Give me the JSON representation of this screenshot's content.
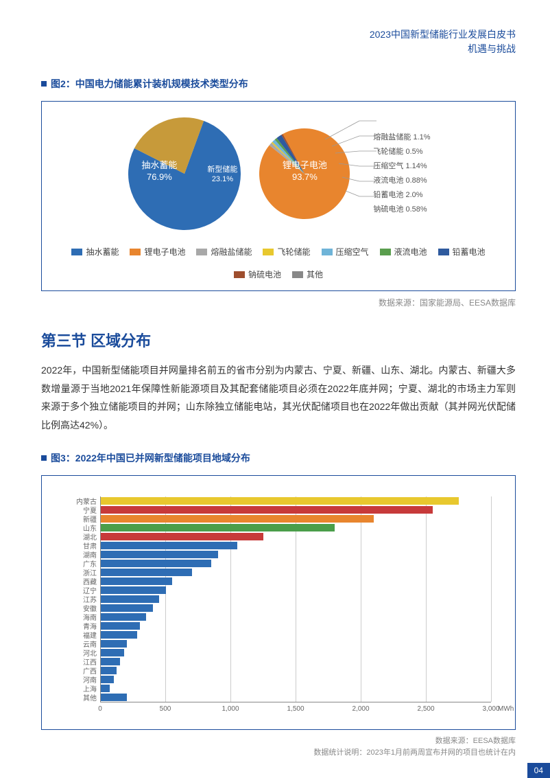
{
  "header": {
    "line1": "2023中国新型储能行业发展白皮书",
    "line2": "机遇与挑战"
  },
  "fig2": {
    "title": "图2：中国电力储能累计装机规模技术类型分布",
    "pie1": {
      "slices": [
        {
          "label": "抽水蓄能",
          "value": 76.9,
          "color": "#2e6db4",
          "text": "抽水蓄能\n76.9%"
        },
        {
          "label": "新型储能",
          "value": 23.1,
          "color": "#c79a3a",
          "text": "新型储能\n23.1%"
        }
      ]
    },
    "pie2": {
      "center_label": "锂电子电池",
      "center_value": "93.7%",
      "main_color": "#e8852e",
      "slices": [
        {
          "label": "锂电子电池",
          "value": 93.7,
          "color": "#e8852e"
        },
        {
          "label": "熔融盐储能",
          "value": 1.1,
          "color": "#a8a8a8"
        },
        {
          "label": "飞轮储能",
          "value": 0.5,
          "color": "#e8c82e"
        },
        {
          "label": "压缩空气",
          "value": 1.14,
          "color": "#6fb4d8"
        },
        {
          "label": "液流电池",
          "value": 0.88,
          "color": "#5a9e4e"
        },
        {
          "label": "铅蓄电池",
          "value": 2.0,
          "color": "#2e5a9e"
        },
        {
          "label": "钠硫电池",
          "value": 0.58,
          "color": "#9e4e2e"
        }
      ],
      "callouts": [
        "熔融盐储能 1.1%",
        "飞轮储能 0.5%",
        "压缩空气 1.14%",
        "液流电池 0.88%",
        "铅蓄电池 2.0%",
        "钠硫电池 0.58%"
      ]
    },
    "legend": [
      {
        "label": "抽水蓄能",
        "color": "#2e6db4"
      },
      {
        "label": "锂电子电池",
        "color": "#e8852e"
      },
      {
        "label": "熔融盐储能",
        "color": "#a8a8a8"
      },
      {
        "label": "飞轮储能",
        "color": "#e8c82e"
      },
      {
        "label": "压缩空气",
        "color": "#6fb4d8"
      },
      {
        "label": "液流电池",
        "color": "#5a9e4e"
      },
      {
        "label": "铅蓄电池",
        "color": "#2e5a9e"
      },
      {
        "label": "钠硫电池",
        "color": "#9e4e2e"
      },
      {
        "label": "其他",
        "color": "#888888"
      }
    ],
    "source": "数据来源：国家能源局、EESA数据库"
  },
  "section3": {
    "title": "第三节  区域分布",
    "body": "2022年，中国新型储能项目并网量排名前五的省市分别为内蒙古、宁夏、新疆、山东、湖北。内蒙古、新疆大多数增量源于当地2021年保障性新能源项目及其配套储能项目必须在2022年底并网；宁夏、湖北的市场主力军则来源于多个独立储能项目的并网；山东除独立储能电站，其光伏配储项目也在2022年做出贡献（其并网光伏配储比例高达42%）。"
  },
  "fig3": {
    "title": "图3：2022年中国已并网新型储能项目地域分布",
    "max": 3000,
    "unit": "MWh",
    "xticks": [
      0,
      500,
      1000,
      1500,
      2000,
      2500,
      3000
    ],
    "xtick_labels": [
      "0",
      "500",
      "1,000",
      "1,500",
      "2,000",
      "2,500",
      "3,000"
    ],
    "bars": [
      {
        "label": "内蒙古",
        "value": 2750,
        "color": "#e8c82e"
      },
      {
        "label": "宁夏",
        "value": 2550,
        "color": "#c73a3a"
      },
      {
        "label": "新疆",
        "value": 2100,
        "color": "#e8852e"
      },
      {
        "label": "山东",
        "value": 1800,
        "color": "#4a9e4a"
      },
      {
        "label": "湖北",
        "value": 1250,
        "color": "#c73a3a"
      },
      {
        "label": "甘肃",
        "value": 1050,
        "color": "#2e6db4"
      },
      {
        "label": "湖南",
        "value": 900,
        "color": "#2e6db4"
      },
      {
        "label": "广东",
        "value": 850,
        "color": "#2e6db4"
      },
      {
        "label": "浙江",
        "value": 700,
        "color": "#2e6db4"
      },
      {
        "label": "西藏",
        "value": 550,
        "color": "#2e6db4"
      },
      {
        "label": "辽宁",
        "value": 500,
        "color": "#2e6db4"
      },
      {
        "label": "江苏",
        "value": 450,
        "color": "#2e6db4"
      },
      {
        "label": "安徽",
        "value": 400,
        "color": "#2e6db4"
      },
      {
        "label": "海南",
        "value": 350,
        "color": "#2e6db4"
      },
      {
        "label": "青海",
        "value": 300,
        "color": "#2e6db4"
      },
      {
        "label": "福建",
        "value": 280,
        "color": "#2e6db4"
      },
      {
        "label": "云南",
        "value": 200,
        "color": "#2e6db4"
      },
      {
        "label": "河北",
        "value": 180,
        "color": "#2e6db4"
      },
      {
        "label": "江西",
        "value": 150,
        "color": "#2e6db4"
      },
      {
        "label": "广西",
        "value": 120,
        "color": "#2e6db4"
      },
      {
        "label": "河南",
        "value": 100,
        "color": "#2e6db4"
      },
      {
        "label": "上海",
        "value": 70,
        "color": "#2e6db4"
      },
      {
        "label": "其他",
        "value": 200,
        "color": "#2e6db4"
      }
    ],
    "source1": "数据来源：EESA数据库",
    "source2": "数据统计说明：2023年1月前两周宣布并网的项目也统计在内"
  },
  "page_number": "04"
}
